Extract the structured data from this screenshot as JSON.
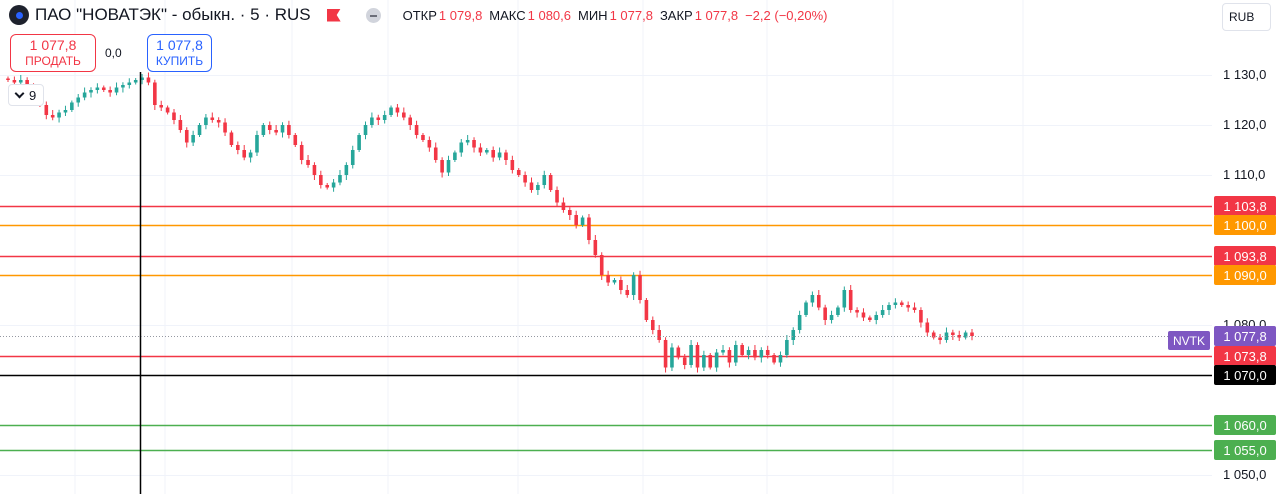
{
  "header": {
    "symbol": "ПАО \"НОВАТЭК\" - обыкн. · 5 · RUS",
    "open_label": "ОТКР",
    "open_value": "1 079,8",
    "high_label": "МАКС",
    "high_value": "1 080,6",
    "low_label": "МИН",
    "low_value": "1 077,8",
    "close_label": "ЗАКР",
    "close_value": "1 077,8",
    "change": "−2,2 (−0,20%)",
    "currency": "RUB"
  },
  "trade": {
    "sell_price": "1 077,8",
    "sell_label": "ПРОДАТЬ",
    "spread": "0,0",
    "buy_price": "1 077,8",
    "buy_label": "КУПИТЬ"
  },
  "indicator_count": "9",
  "colors": {
    "up": "#26a69a",
    "down": "#f23645",
    "red_level": "#f23645",
    "orange_level": "#ff9800",
    "green_level": "#4caf50",
    "black_level": "#000000",
    "ticker": "#7e57c2"
  },
  "chart_data": {
    "type": "candlestick",
    "interval": "5",
    "ylim": [
      1047,
      1139
    ],
    "y_ticks": [
      {
        "value": 1130,
        "label": "1 130,0"
      },
      {
        "value": 1120,
        "label": "1 120,0"
      },
      {
        "value": 1110,
        "label": "1 110,0"
      },
      {
        "value": 1080,
        "label": "1 080,0"
      },
      {
        "value": 1050,
        "label": "1 050,0"
      }
    ],
    "levels": [
      {
        "value": 1103.8,
        "label": "1 103,8",
        "color": "#f23645"
      },
      {
        "value": 1100.0,
        "label": "1 100,0",
        "color": "#ff9800"
      },
      {
        "value": 1093.8,
        "label": "1 093,8",
        "color": "#f23645"
      },
      {
        "value": 1090.0,
        "label": "1 090,0",
        "color": "#ff9800"
      },
      {
        "value": 1073.8,
        "label": "1 073,8",
        "color": "#f23645"
      },
      {
        "value": 1070.0,
        "label": "1 070,0",
        "color": "#000000"
      },
      {
        "value": 1060.0,
        "label": "1 060,0",
        "color": "#4caf50"
      },
      {
        "value": 1055.0,
        "label": "1 055,0",
        "color": "#4caf50"
      }
    ],
    "last_price": {
      "value": 1077.8,
      "label": "1 077,8",
      "ticker": "NVTK"
    },
    "close_path": [
      1129.0,
      1128.5,
      1129.0,
      1127.5,
      1126.0,
      1124.0,
      1122.0,
      1121.5,
      1122.5,
      1123.0,
      1124.5,
      1125.5,
      1126.5,
      1127.0,
      1127.5,
      1127.0,
      1126.5,
      1127.5,
      1128.0,
      1128.5,
      1129.0,
      1129.5,
      1128.5,
      1124.0,
      1123.5,
      1122.5,
      1121.0,
      1119.0,
      1116.5,
      1118.0,
      1120.0,
      1121.5,
      1121.0,
      1120.5,
      1118.5,
      1116.0,
      1115.0,
      1113.5,
      1114.5,
      1118.0,
      1120.0,
      1119.0,
      1118.5,
      1120.0,
      1118.0,
      1116.0,
      1113.0,
      1112.0,
      1110.0,
      1108.0,
      1107.5,
      1108.5,
      1110.0,
      1112.0,
      1115.0,
      1118.0,
      1120.0,
      1121.5,
      1121.0,
      1122.0,
      1123.5,
      1122.5,
      1121.5,
      1120.0,
      1118.0,
      1117.0,
      1115.5,
      1113.0,
      1110.5,
      1113.0,
      1114.5,
      1116.5,
      1117.0,
      1115.5,
      1114.5,
      1115.0,
      1113.5,
      1114.5,
      1113.0,
      1111.0,
      1110.0,
      1108.5,
      1107.0,
      1108.0,
      1110.0,
      1107.0,
      1104.5,
      1103.0,
      1102.0,
      1100.0,
      1101.5,
      1097.0,
      1094.0,
      1090.0,
      1088.5,
      1089.0,
      1087.0,
      1086.0,
      1090.0,
      1085.0,
      1081.0,
      1079.0,
      1077.0,
      1071.5,
      1075.5,
      1073.5,
      1072.0,
      1076.0,
      1071.5,
      1074.0,
      1071.5,
      1074.5,
      1075.0,
      1072.5,
      1076.0,
      1074.0,
      1075.0,
      1073.5,
      1075.0,
      1074.0,
      1072.5,
      1074.0,
      1077.0,
      1079.0,
      1082.0,
      1084.5,
      1086.0,
      1083.5,
      1081.0,
      1082.0,
      1083.5,
      1087.0,
      1083.0,
      1082.5,
      1081.5,
      1081.0,
      1082.0,
      1083.0,
      1084.0,
      1084.5,
      1084.0,
      1083.5,
      1083.0,
      1080.5,
      1078.5,
      1077.5,
      1077.0,
      1078.5,
      1078.0,
      1077.5,
      1078.5,
      1077.8
    ]
  }
}
